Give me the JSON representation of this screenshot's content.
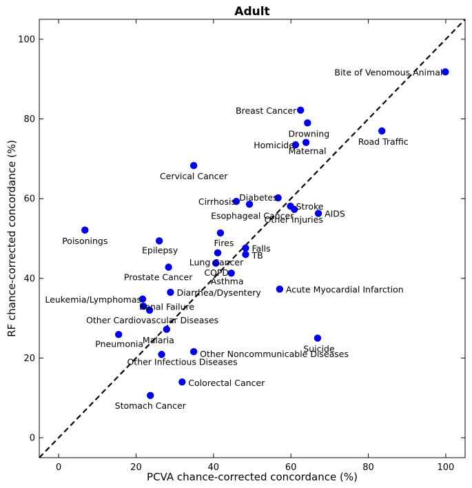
{
  "chart_data": {
    "type": "scatter",
    "title": "Adult",
    "xlabel": "PCVA chance-corrected concordance (%)",
    "ylabel": "RF chance-corrected concordance (%)",
    "xlim": [
      -5,
      105
    ],
    "ylim": [
      -5,
      105
    ],
    "xticks": [
      0,
      20,
      40,
      60,
      80,
      100
    ],
    "yticks": [
      0,
      20,
      40,
      60,
      80,
      100
    ],
    "reference_line": "y = x (dashed)",
    "point_color": "#0000ee",
    "points": [
      {
        "label": "Bite of Venomous Animal",
        "x": 99.9,
        "y": 91.8,
        "anchor": "end"
      },
      {
        "label": "Breast Cancer",
        "x": 62.5,
        "y": 82.2,
        "anchor": "end"
      },
      {
        "label": "Drowning",
        "x": 64.3,
        "y": 79.0,
        "anchor": "middle"
      },
      {
        "label": "Road Traffic",
        "x": 83.5,
        "y": 77.0,
        "anchor": "middle"
      },
      {
        "label": "Homicide",
        "x": 61.2,
        "y": 73.5,
        "anchor": "end"
      },
      {
        "label": "Maternal",
        "x": 63.9,
        "y": 74.1,
        "anchor": "middle"
      },
      {
        "label": "Cervical Cancer",
        "x": 34.9,
        "y": 68.3,
        "anchor": "middle"
      },
      {
        "label": "Diabetes",
        "x": 56.7,
        "y": 60.2,
        "anchor": "end"
      },
      {
        "label": "Cirrhosis",
        "x": 45.9,
        "y": 59.3,
        "anchor": "end"
      },
      {
        "label": "Esophageal Cancer",
        "x": 49.3,
        "y": 58.6,
        "anchor": "start"
      },
      {
        "label": "Stroke",
        "x": 59.9,
        "y": 58.1,
        "anchor": "start"
      },
      {
        "label": "Other Injuries",
        "x": 60.9,
        "y": 57.3,
        "anchor": "middle"
      },
      {
        "label": "AIDS",
        "x": 67.1,
        "y": 56.3,
        "anchor": "start"
      },
      {
        "label": "Poisonings",
        "x": 6.8,
        "y": 52.1,
        "anchor": "middle"
      },
      {
        "label": "Fires",
        "x": 41.8,
        "y": 51.4,
        "anchor": "middle"
      },
      {
        "label": "Epilepsy",
        "x": 26.0,
        "y": 49.4,
        "anchor": "middle"
      },
      {
        "label": "Falls",
        "x": 48.3,
        "y": 47.6,
        "anchor": "start"
      },
      {
        "label": "Lung Cancer",
        "x": 41.1,
        "y": 46.4,
        "anchor": "middle"
      },
      {
        "label": "TB",
        "x": 48.3,
        "y": 46.0,
        "anchor": "start"
      },
      {
        "label": "COPD",
        "x": 40.6,
        "y": 43.8,
        "anchor": "middle"
      },
      {
        "label": "Prostate Cancer",
        "x": 28.4,
        "y": 42.8,
        "anchor": "middle"
      },
      {
        "label": "Asthma",
        "x": 44.6,
        "y": 41.3,
        "anchor": "middle"
      },
      {
        "label": "Acute Myocardial Infarction",
        "x": 57.1,
        "y": 37.3,
        "anchor": "start"
      },
      {
        "label": "Diarrhea/Dysentery",
        "x": 28.9,
        "y": 36.5,
        "anchor": "start"
      },
      {
        "label": "Leukemia/Lymphomas",
        "x": 21.7,
        "y": 34.8,
        "anchor": "end"
      },
      {
        "label": "Renal Failure",
        "x": 21.9,
        "y": 33.0,
        "anchor": "start"
      },
      {
        "label": "Other Cardiovascular Diseases",
        "x": 23.5,
        "y": 32.0,
        "anchor": "middle"
      },
      {
        "label": "Malaria",
        "x": 27.9,
        "y": 27.2,
        "anchor": "middle"
      },
      {
        "label": "Pneumonia",
        "x": 15.5,
        "y": 25.9,
        "anchor": "middle"
      },
      {
        "label": "Suicide",
        "x": 66.9,
        "y": 25.0,
        "anchor": "middle"
      },
      {
        "label": "Other Noncommunicable Diseases",
        "x": 34.9,
        "y": 21.6,
        "anchor": "start"
      },
      {
        "label": "Other Infectious Diseases",
        "x": 26.6,
        "y": 20.9,
        "anchor": "middle"
      },
      {
        "label": "Colorectal Cancer",
        "x": 31.9,
        "y": 14.0,
        "anchor": "start"
      },
      {
        "label": "Stomach Cancer",
        "x": 23.7,
        "y": 10.6,
        "anchor": "middle"
      }
    ]
  }
}
